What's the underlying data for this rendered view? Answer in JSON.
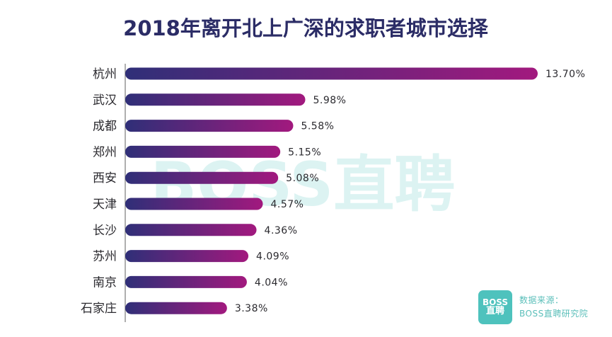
{
  "chart_data": {
    "type": "bar",
    "orientation": "horizontal",
    "title": "2018年离开北上广深的求职者城市选择",
    "categories": [
      "杭州",
      "武汉",
      "成都",
      "郑州",
      "西安",
      "天津",
      "长沙",
      "苏州",
      "南京",
      "石家庄"
    ],
    "values": [
      13.7,
      5.98,
      5.58,
      5.15,
      5.08,
      4.57,
      4.36,
      4.09,
      4.04,
      3.38
    ],
    "value_labels": [
      "13.70%",
      "5.98%",
      "5.58%",
      "5.15%",
      "5.08%",
      "4.57%",
      "4.36%",
      "4.09%",
      "4.04%",
      "3.38%"
    ],
    "unit": "%",
    "xlim": [
      0,
      13.7
    ],
    "grid": false,
    "legend": "none",
    "colors": {
      "bar_start": "#2f2f78",
      "bar_end": "#a2197e",
      "title": "#2b2c66",
      "accent": "#4ec2bd"
    }
  },
  "watermark": "BOSS直聘",
  "source": {
    "logo_line1": "BOSS",
    "logo_line2": "直聘",
    "label": "数据来源：",
    "name": "BOSS直聘研究院"
  }
}
